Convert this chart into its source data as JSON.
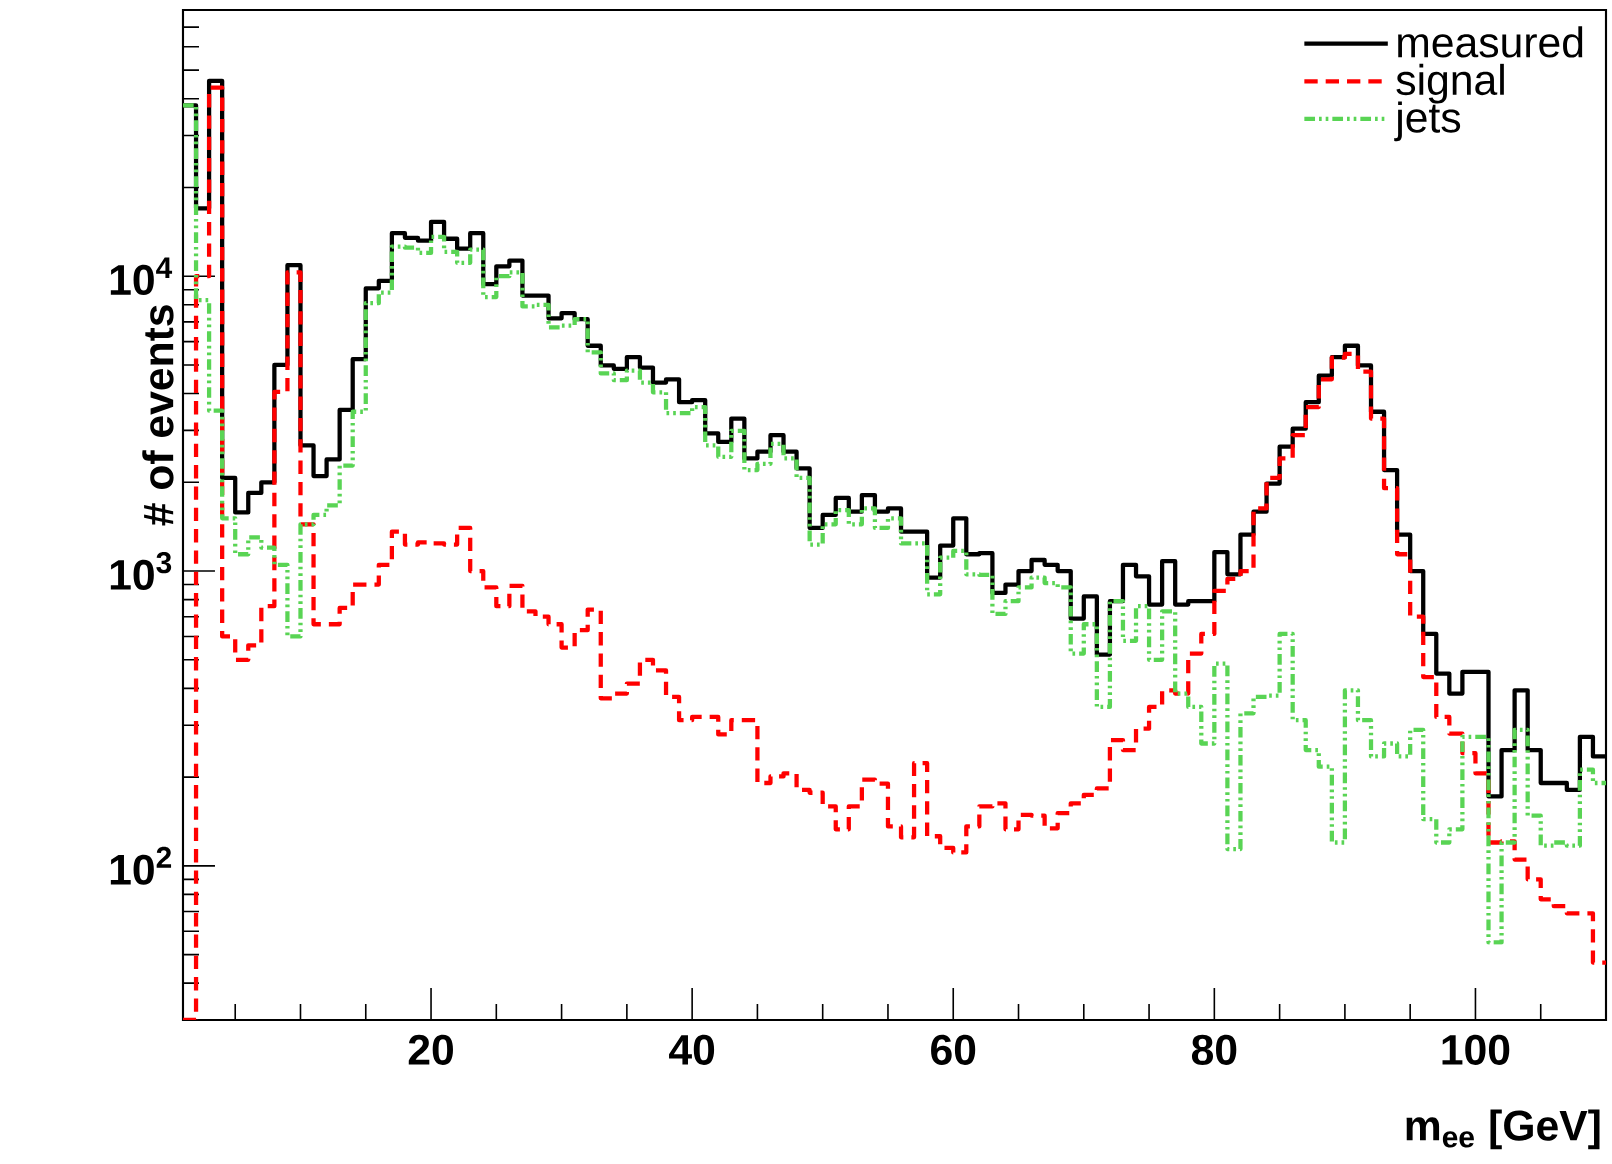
{
  "chart_data": {
    "type": "histogram",
    "xlabel": "m$_{ee}$ [GeV]",
    "ylabel": "# of events",
    "bins": [
      1,
      2,
      3,
      4,
      5,
      6,
      7,
      8,
      9,
      10,
      11,
      12,
      13,
      14,
      15,
      16,
      17,
      18,
      19,
      20,
      21,
      22,
      23,
      24,
      25,
      26,
      27,
      28,
      29,
      30,
      31,
      32,
      33,
      34,
      35,
      36,
      37,
      38,
      39,
      40,
      41,
      42,
      43,
      44,
      45,
      46,
      47,
      48,
      49,
      50,
      51,
      52,
      53,
      54,
      55,
      56,
      57,
      58,
      59,
      60,
      61,
      62,
      63,
      64,
      65,
      66,
      67,
      68,
      69,
      70,
      71,
      72,
      73,
      74,
      75,
      76,
      77,
      78,
      79,
      80,
      81,
      82,
      83,
      84,
      85,
      86,
      87,
      88,
      89,
      90,
      91,
      92,
      93,
      94,
      95,
      96,
      97,
      98,
      99,
      100,
      101,
      102,
      103,
      104,
      105,
      106,
      107,
      108,
      109,
      110
    ],
    "series": [
      {
        "name": "measured",
        "color": "#000000",
        "line_style": "solid",
        "values": [
          38000,
          17000,
          46000,
          2070,
          1580,
          1840,
          2000,
          5000,
          10900,
          2670,
          2100,
          2390,
          3520,
          5230,
          9100,
          9650,
          14000,
          13500,
          13200,
          15300,
          13400,
          12400,
          14000,
          9400,
          10800,
          11300,
          8600,
          8600,
          7200,
          7500,
          7150,
          5810,
          4980,
          4850,
          5320,
          4900,
          4360,
          4470,
          3740,
          3800,
          2930,
          2740,
          3290,
          2410,
          2540,
          2890,
          2540,
          2230,
          1400,
          1550,
          1770,
          1590,
          1810,
          1590,
          1630,
          1360,
          1360,
          950,
          1220,
          1510,
          1140,
          1150,
          843,
          900,
          1000,
          1090,
          1050,
          1000,
          690,
          820,
          521,
          790,
          1050,
          960,
          770,
          1080,
          770,
          790,
          790,
          1160,
          975,
          1330,
          1590,
          1980,
          2640,
          3040,
          3740,
          4600,
          5320,
          5810,
          4980,
          3470,
          2200,
          1330,
          1000,
          612,
          449,
          384,
          455,
          455,
          172,
          247,
          394,
          247,
          191,
          191,
          181,
          274,
          235
        ]
      },
      {
        "name": "signal",
        "color": "#ff0000",
        "line_style": "dashed",
        "values": [
          30,
          10000,
          43600,
          600,
          500,
          560,
          760,
          4050,
          10300,
          1440,
          660,
          660,
          750,
          900,
          900,
          1050,
          1360,
          1230,
          1250,
          1240,
          1230,
          1400,
          1000,
          880,
          760,
          890,
          730,
          700,
          660,
          550,
          630,
          740,
          370,
          384,
          415,
          500,
          460,
          374,
          312,
          320,
          320,
          279,
          312,
          312,
          191,
          201,
          206,
          181,
          177,
          159,
          133,
          159,
          196,
          190,
          136,
          125,
          223,
          126,
          115,
          111,
          136,
          159,
          163,
          133,
          149,
          148,
          134,
          151,
          163,
          174,
          183,
          267,
          247,
          292,
          346,
          394,
          384,
          525,
          612,
          857,
          940,
          1000,
          1630,
          2070,
          2410,
          2890,
          3600,
          4470,
          5300,
          5450,
          4750,
          3290,
          1910,
          1140,
          700,
          437,
          320,
          281,
          241,
          206,
          120,
          121,
          105,
          90,
          77,
          73,
          69,
          69,
          47
        ]
      },
      {
        "name": "jets",
        "color": "#59d454",
        "line_style": "dotted",
        "values": [
          38000,
          8300,
          3500,
          1510,
          1140,
          1300,
          1200,
          1050,
          600,
          1440,
          1550,
          1670,
          2280,
          3470,
          8100,
          8800,
          12600,
          12500,
          12000,
          13600,
          12100,
          11100,
          12300,
          8500,
          10000,
          10300,
          7900,
          8000,
          6710,
          6800,
          7150,
          5520,
          4680,
          4440,
          4780,
          4360,
          4040,
          3430,
          3430,
          3600,
          2670,
          2440,
          2990,
          2200,
          2310,
          2700,
          2410,
          2070,
          1230,
          1440,
          1610,
          1440,
          1630,
          1400,
          1510,
          1240,
          1240,
          834,
          1110,
          1170,
          975,
          970,
          715,
          790,
          880,
          950,
          910,
          880,
          525,
          660,
          346,
          790,
          580,
          760,
          500,
          730,
          384,
          346,
          260,
          485,
          114,
          329,
          374,
          378,
          612,
          312,
          247,
          217,
          120,
          394,
          312,
          235,
          260,
          235,
          289,
          144,
          120,
          133,
          274,
          274,
          55,
          120,
          289,
          148,
          117,
          120,
          117,
          212,
          191
        ]
      }
    ],
    "xlim": [
      1,
      110
    ],
    "ylim": [
      30,
      80000
    ],
    "xticks": [
      20,
      40,
      60,
      80,
      100
    ],
    "yticks": [
      {
        "value": 100,
        "label": "10$^{2}$"
      },
      {
        "value": 1000,
        "label": "10$^{3}$"
      },
      {
        "value": 10000,
        "label": "10$^{4}$"
      }
    ],
    "log": "y",
    "legend": "top right"
  }
}
